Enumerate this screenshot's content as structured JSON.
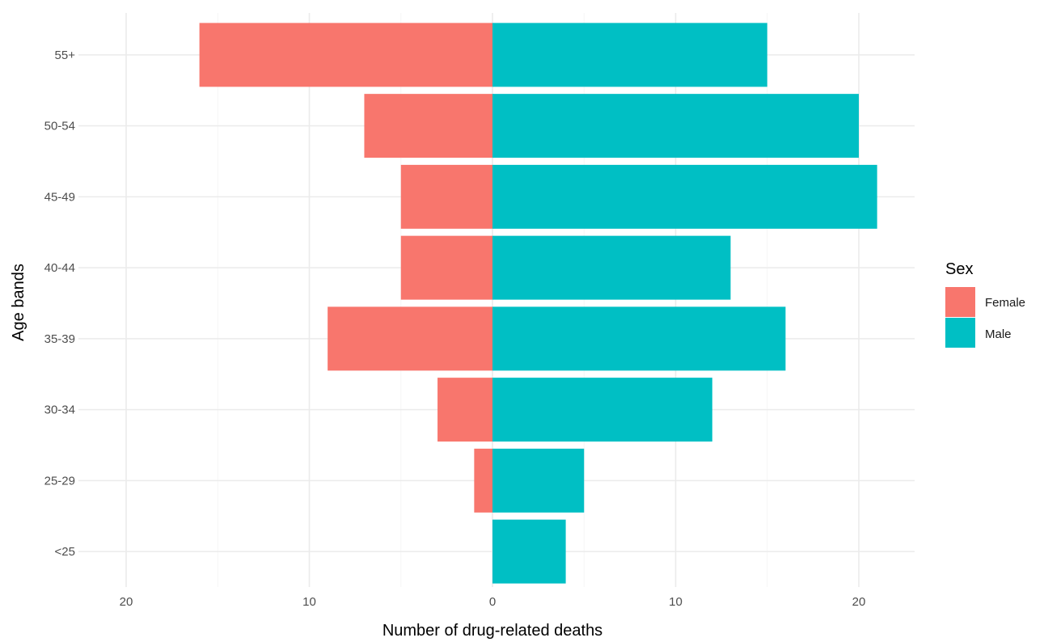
{
  "chart_data": {
    "type": "bar",
    "orientation": "horizontal",
    "layout": "population-pyramid",
    "categories": [
      "<25",
      "25-29",
      "30-34",
      "35-39",
      "40-44",
      "45-49",
      "50-54",
      "55+"
    ],
    "series": [
      {
        "name": "Female",
        "values": [
          0,
          1,
          3,
          9,
          5,
          5,
          7,
          16
        ],
        "color": "#F8766D",
        "side": "left"
      },
      {
        "name": "Male",
        "values": [
          4,
          5,
          12,
          16,
          13,
          21,
          20,
          15
        ],
        "color": "#00BFC4",
        "side": "right"
      }
    ],
    "x_ticks": [
      {
        "value": -20,
        "label": "20"
      },
      {
        "value": -10,
        "label": "10"
      },
      {
        "value": 0,
        "label": "0"
      },
      {
        "value": 10,
        "label": "10"
      },
      {
        "value": 20,
        "label": "20"
      }
    ],
    "xlim": [
      -20,
      20
    ],
    "xlabel": "Number of drug-related deaths",
    "ylabel": "Age bands",
    "grid": true,
    "legend": {
      "title": "Sex",
      "position": "right",
      "entries": [
        {
          "label": "Female",
          "color": "#F8766D"
        },
        {
          "label": "Male",
          "color": "#00BFC4"
        }
      ]
    }
  }
}
